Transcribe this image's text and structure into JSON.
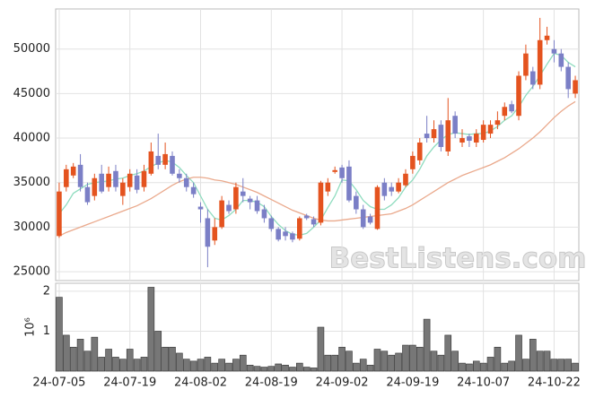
{
  "chart_data": {
    "type": "candlestick",
    "watermark": "BestListens.com",
    "categories": [
      "24-07-05",
      null,
      null,
      null,
      null,
      null,
      null,
      null,
      null,
      null,
      "24-07-19",
      null,
      null,
      null,
      null,
      null,
      null,
      null,
      null,
      null,
      "24-08-02",
      null,
      null,
      null,
      null,
      null,
      null,
      null,
      null,
      null,
      "24-08-19",
      null,
      null,
      null,
      null,
      null,
      null,
      null,
      null,
      null,
      "24-09-02",
      null,
      null,
      null,
      null,
      null,
      null,
      null,
      null,
      null,
      "24-09-19",
      null,
      null,
      null,
      null,
      null,
      null,
      null,
      null,
      null,
      "24-10-07",
      null,
      null,
      null,
      null,
      null,
      null,
      null,
      null,
      null,
      "24-10-22",
      null,
      null,
      null
    ],
    "open": [
      29000,
      34500,
      35800,
      37000,
      34500,
      33500,
      36000,
      34500,
      36300,
      33500,
      34500,
      35800,
      34500,
      36000,
      38000,
      37000,
      38000,
      36000,
      35500,
      34500,
      32300,
      31000,
      28500,
      30000,
      32500,
      32000,
      34000,
      33200,
      33000,
      32000,
      31000,
      29800,
      29500,
      29300,
      28700,
      31300,
      30900,
      30500,
      34000,
      36200,
      36700,
      36800,
      33500,
      32000,
      31200,
      29800,
      35000,
      34500,
      34000,
      34700,
      36500,
      37500,
      40500,
      40000,
      41500,
      38500,
      42500,
      39500,
      40200,
      39500,
      39800,
      40500,
      41500,
      42500,
      43800,
      42500,
      47000,
      47500,
      46000,
      51000,
      50000,
      49500,
      48000,
      45000
    ],
    "high": [
      35000,
      37000,
      37200,
      38200,
      35000,
      36000,
      37000,
      36800,
      37000,
      35500,
      36500,
      36500,
      37000,
      39500,
      40500,
      39500,
      38500,
      36500,
      36000,
      35000,
      32800,
      32000,
      31000,
      33500,
      33000,
      35000,
      35500,
      33500,
      33500,
      32500,
      31300,
      30000,
      30000,
      29500,
      31200,
      31500,
      31200,
      35200,
      35500,
      36800,
      37000,
      37500,
      34000,
      32500,
      31500,
      34700,
      35500,
      35000,
      35500,
      36500,
      38500,
      40000,
      42500,
      42000,
      42000,
      44500,
      43000,
      41000,
      40500,
      41000,
      42000,
      42000,
      43000,
      44000,
      44200,
      47500,
      50500,
      48000,
      53500,
      52500,
      51000,
      50000,
      48500,
      47000
    ],
    "low": [
      28800,
      34000,
      35500,
      34000,
      32500,
      33000,
      33800,
      34000,
      34000,
      32500,
      34000,
      33800,
      34000,
      35800,
      36500,
      36500,
      35800,
      35000,
      34000,
      33300,
      30500,
      25500,
      28000,
      29800,
      31500,
      31500,
      32800,
      32000,
      31500,
      30500,
      29500,
      28400,
      28500,
      28300,
      28500,
      30800,
      30000,
      30200,
      33500,
      36000,
      35000,
      32800,
      31500,
      29800,
      30300,
      29700,
      33000,
      33500,
      33800,
      34500,
      36000,
      37000,
      39500,
      39500,
      38500,
      38000,
      40000,
      39000,
      39000,
      39000,
      39500,
      40000,
      41000,
      42000,
      42800,
      42000,
      46500,
      45500,
      45500,
      50500,
      48500,
      47500,
      44500,
      44500
    ],
    "close": [
      34000,
      36500,
      36800,
      34500,
      32800,
      35500,
      34000,
      36000,
      34500,
      35000,
      36000,
      34200,
      36300,
      38500,
      37000,
      38200,
      36000,
      35500,
      34500,
      33700,
      32000,
      27800,
      30000,
      33000,
      31800,
      34500,
      33500,
      32800,
      31800,
      31000,
      29800,
      28600,
      29000,
      28600,
      31000,
      31000,
      30300,
      35000,
      35000,
      36400,
      35500,
      33000,
      32000,
      30000,
      30500,
      34500,
      33500,
      34000,
      35000,
      36000,
      38000,
      39500,
      40000,
      41000,
      39000,
      42000,
      40500,
      40000,
      39700,
      40500,
      41500,
      41500,
      42000,
      43500,
      43000,
      47000,
      49500,
      46000,
      51000,
      51500,
      49500,
      48000,
      45500,
      46500
    ],
    "up_color": "#e4531f",
    "down_color": "#7b7fc6",
    "moving_averages": [
      {
        "color": "#8fdcbf",
        "values": [
          31500,
          32500,
          33800,
          34300,
          34800,
          35000,
          35100,
          35200,
          35400,
          35500,
          35800,
          36000,
          36300,
          36800,
          37200,
          37500,
          37300,
          36700,
          35800,
          35000,
          33500,
          32000,
          31000,
          30800,
          31300,
          32000,
          33000,
          33000,
          32800,
          32300,
          31200,
          30300,
          29600,
          29200,
          29100,
          29300,
          30000,
          30800,
          32200,
          33500,
          35300,
          35200,
          34200,
          33000,
          32300,
          32000,
          32000,
          32500,
          33300,
          34500,
          35300,
          36500,
          38000,
          39000,
          39800,
          40400,
          40600,
          40500,
          40400,
          40500,
          40500,
          40800,
          41300,
          42000,
          42500,
          43500,
          44800,
          45800,
          47000,
          48300,
          49500,
          49300,
          48500,
          48000
        ]
      },
      {
        "color": "#eaa98c",
        "values": [
          29000,
          29400,
          29700,
          30000,
          30300,
          30600,
          30900,
          31200,
          31500,
          31800,
          32100,
          32400,
          32800,
          33200,
          33700,
          34200,
          34700,
          35100,
          35400,
          35600,
          35600,
          35500,
          35300,
          35200,
          35000,
          34800,
          34500,
          34200,
          33900,
          33500,
          33100,
          32700,
          32300,
          31900,
          31600,
          31300,
          31000,
          30800,
          30700,
          30700,
          30800,
          30900,
          31000,
          31100,
          31200,
          31300,
          31400,
          31500,
          31800,
          32100,
          32500,
          33000,
          33500,
          34000,
          34500,
          35000,
          35400,
          35800,
          36100,
          36400,
          36700,
          37000,
          37400,
          37800,
          38300,
          38800,
          39400,
          40000,
          40700,
          41500,
          42300,
          43000,
          43600,
          44100
        ]
      }
    ],
    "ylim": [
      24000,
      54500
    ],
    "yticks": [
      25000,
      30000,
      35000,
      40000,
      45000,
      50000
    ],
    "grid": true,
    "volume": {
      "ylabel": "10⁶",
      "color": "#777777",
      "ylim": [
        0,
        2.2
      ],
      "yticks": [
        1,
        2
      ],
      "values": [
        1.85,
        0.9,
        0.6,
        0.8,
        0.5,
        0.85,
        0.35,
        0.55,
        0.35,
        0.3,
        0.55,
        0.3,
        0.35,
        2.1,
        1.0,
        0.6,
        0.6,
        0.45,
        0.3,
        0.25,
        0.3,
        0.35,
        0.2,
        0.3,
        0.2,
        0.3,
        0.4,
        0.15,
        0.12,
        0.1,
        0.12,
        0.18,
        0.15,
        0.1,
        0.2,
        0.1,
        0.08,
        1.1,
        0.4,
        0.4,
        0.6,
        0.5,
        0.2,
        0.3,
        0.15,
        0.55,
        0.5,
        0.4,
        0.45,
        0.65,
        0.65,
        0.6,
        1.3,
        0.5,
        0.4,
        0.9,
        0.5,
        0.2,
        0.18,
        0.25,
        0.2,
        0.35,
        0.6,
        0.2,
        0.25,
        0.9,
        0.3,
        0.8,
        0.5,
        0.5,
        0.3,
        0.3,
        0.3,
        0.2
      ]
    }
  }
}
